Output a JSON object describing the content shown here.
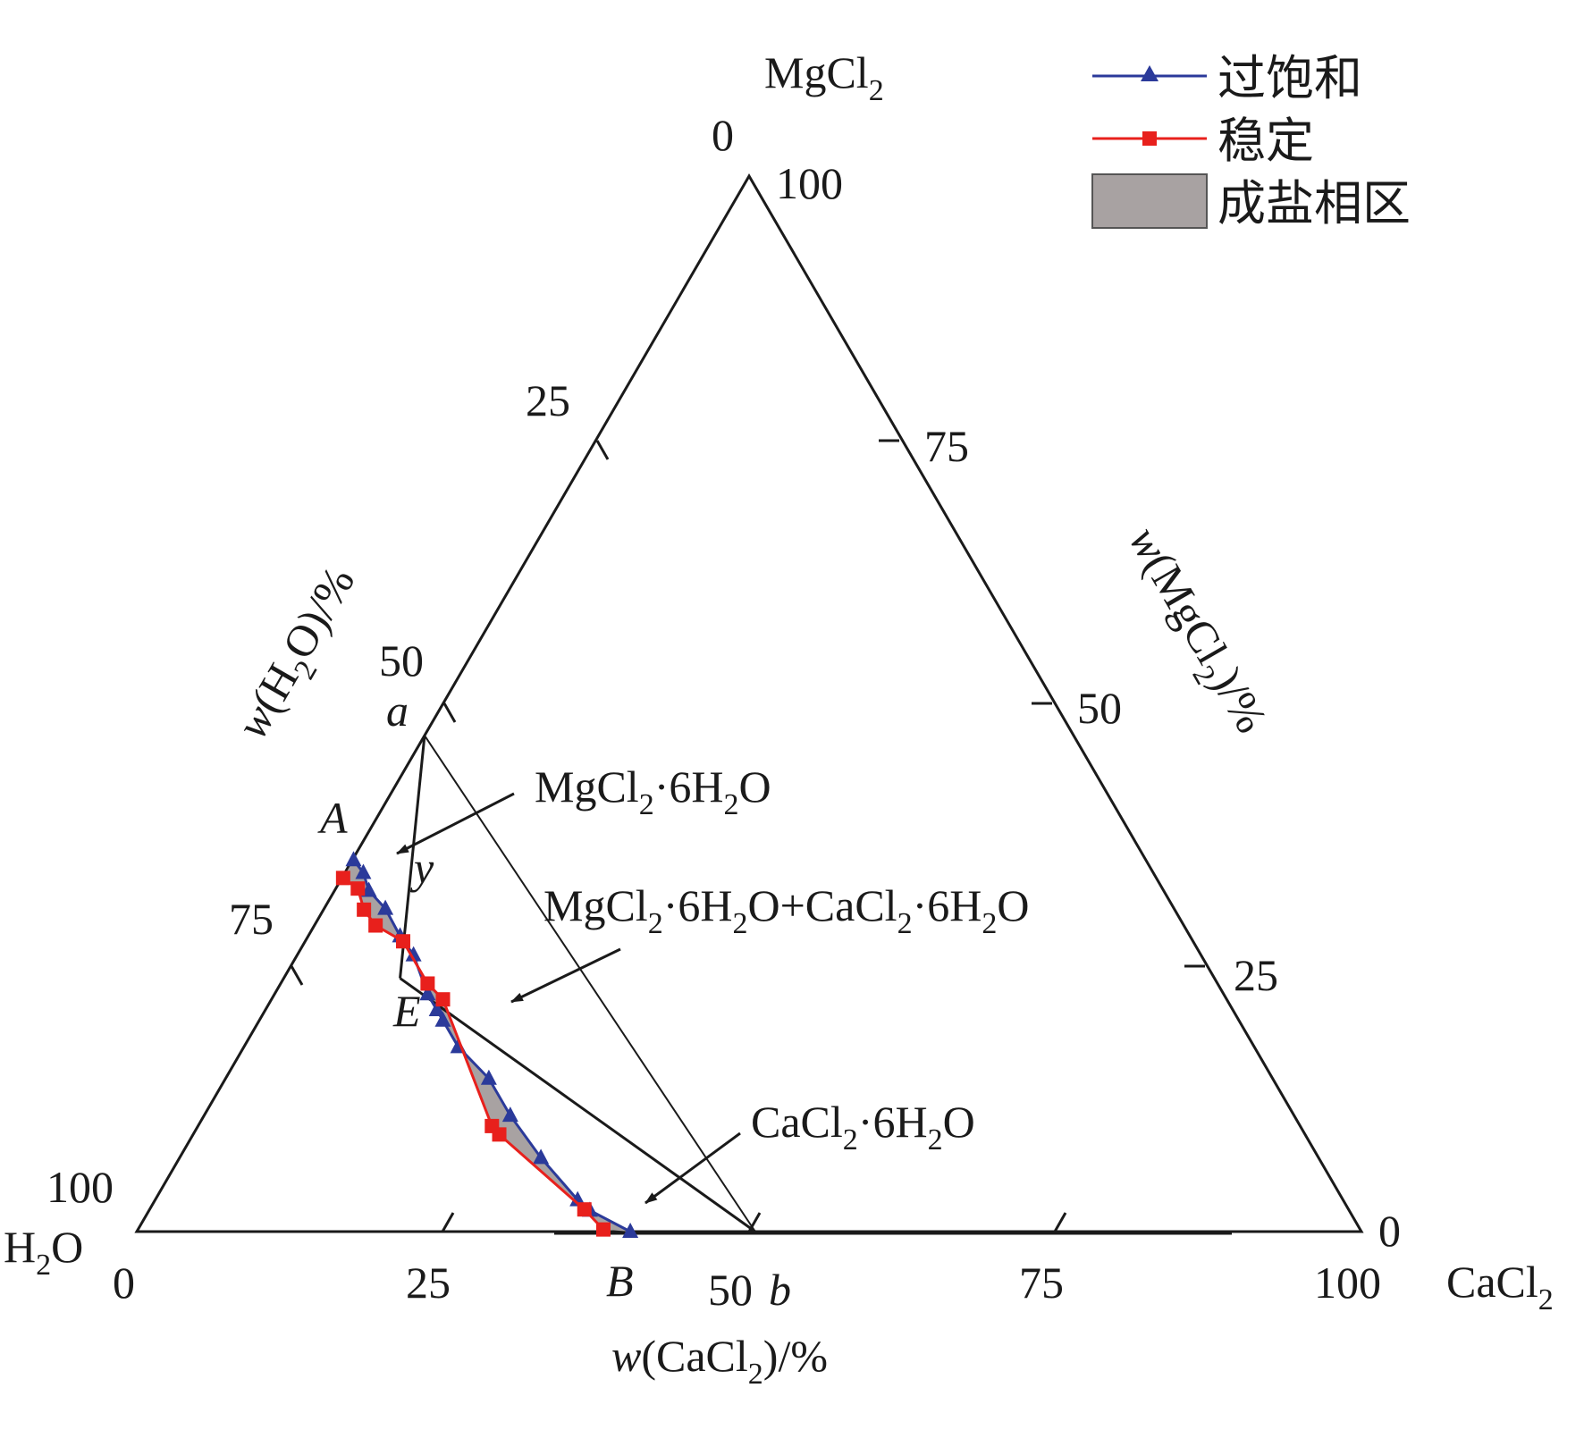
{
  "chart_data": {
    "type": "ternary",
    "vertices": {
      "top": {
        "label": "MgCl",
        "sub": "2"
      },
      "left": {
        "label": "H",
        "sub": "2",
        "tail": "O"
      },
      "right": {
        "label": "CaCl",
        "sub": "2"
      }
    },
    "axes": {
      "mgcl2": {
        "ticks": [
          "0",
          "25",
          "50",
          "75",
          "100"
        ],
        "title": {
          "pre": "w",
          "mid": "(MgCl",
          "sub": "2",
          "post": ")/%"
        }
      },
      "h2o": {
        "ticks": [
          "0",
          "25",
          "50",
          "75",
          "100"
        ],
        "title": {
          "pre": "w",
          "mid": "(H",
          "sub": "2",
          "post": "O)/%"
        }
      },
      "cacl2": {
        "ticks": [
          "0",
          "25",
          "50",
          "75",
          "100"
        ],
        "title": {
          "pre": "w",
          "mid": "(CaCl",
          "sub": "2",
          "post": ")/%"
        }
      }
    },
    "legend": {
      "placement": "top-right",
      "items": [
        {
          "label": "过饱和",
          "color": "#2b3a9a",
          "marker": "triangle"
        },
        {
          "label": "稳定",
          "color": "#e8201c",
          "marker": "square"
        },
        {
          "label": "成盐相区",
          "color": "#a8a2a2",
          "marker": "area"
        }
      ]
    },
    "series": [
      {
        "name": "过饱和",
        "color": "#2b3a9a",
        "marker": "triangle",
        "points": [
          {
            "cacl2": 0.1,
            "mgcl2": 35.2
          },
          {
            "cacl2": 1.5,
            "mgcl2": 34.0
          },
          {
            "cacl2": 2.8,
            "mgcl2": 32.3
          },
          {
            "cacl2": 5.0,
            "mgcl2": 30.6
          },
          {
            "cacl2": 7.5,
            "mgcl2": 28.0
          },
          {
            "cacl2": 9.5,
            "mgcl2": 26.2
          },
          {
            "cacl2": 12.5,
            "mgcl2": 22.5
          },
          {
            "cacl2": 14.0,
            "mgcl2": 21.0
          },
          {
            "cacl2": 15.0,
            "mgcl2": 20.0
          },
          {
            "cacl2": 17.5,
            "mgcl2": 17.5
          },
          {
            "cacl2": 21.5,
            "mgcl2": 14.5
          },
          {
            "cacl2": 25.0,
            "mgcl2": 11.0
          },
          {
            "cacl2": 29.5,
            "mgcl2": 7.0
          },
          {
            "cacl2": 34.5,
            "mgcl2": 3.0
          },
          {
            "cacl2": 36.0,
            "mgcl2": 2.0
          },
          {
            "cacl2": 40.3,
            "mgcl2": 0.0
          }
        ]
      },
      {
        "name": "稳定",
        "color": "#e8201c",
        "marker": "square",
        "points": [
          {
            "cacl2": 0.1,
            "mgcl2": 33.5
          },
          {
            "cacl2": 1.8,
            "mgcl2": 32.5
          },
          {
            "cacl2": 3.3,
            "mgcl2": 30.5
          },
          {
            "cacl2": 5.0,
            "mgcl2": 29.0
          },
          {
            "cacl2": 8.0,
            "mgcl2": 27.5
          },
          {
            "cacl2": 12.0,
            "mgcl2": 23.5
          },
          {
            "cacl2": 14.0,
            "mgcl2": 22.0
          },
          {
            "cacl2": 24.0,
            "mgcl2": 10.0
          },
          {
            "cacl2": 25.0,
            "mgcl2": 9.2
          },
          {
            "cacl2": 35.5,
            "mgcl2": 2.1
          },
          {
            "cacl2": 38.0,
            "mgcl2": 0.2
          }
        ]
      }
    ],
    "lines": [
      {
        "from": {
          "cacl2": 0,
          "mgcl2": 47
        },
        "to": {
          "cacl2": 50.5,
          "mgcl2": 0
        }
      },
      {
        "from": {
          "cacl2": 0,
          "mgcl2": 47
        },
        "to": {
          "cacl2": 9.5,
          "mgcl2": 24.0
        }
      },
      {
        "from": {
          "cacl2": 9.5,
          "mgcl2": 24.0
        },
        "to": {
          "cacl2": 50.5,
          "mgcl2": 0
        }
      }
    ],
    "points": [
      {
        "label": "a",
        "cacl2": 0,
        "mgcl2": 47
      },
      {
        "label": "A",
        "cacl2": 0,
        "mgcl2": 35.2
      },
      {
        "label": "y",
        "cacl2": 4,
        "mgcl2": 31
      },
      {
        "label": "E",
        "cacl2": 9.5,
        "mgcl2": 24.0
      },
      {
        "label": "B",
        "cacl2": 39,
        "mgcl2": 0
      },
      {
        "label": "b",
        "cacl2": 50.5,
        "mgcl2": 0
      }
    ],
    "annotations": [
      {
        "id": "ann-mg",
        "parts": [
          [
            "MgCl",
            ""
          ],
          [
            "2",
            "sub"
          ],
          [
            "·6H",
            ""
          ],
          [
            "2",
            "sub"
          ],
          [
            "O",
            ""
          ]
        ]
      },
      {
        "id": "ann-mgca",
        "parts": [
          [
            "MgCl",
            ""
          ],
          [
            "2",
            "sub"
          ],
          [
            "·6H",
            ""
          ],
          [
            "2",
            "sub"
          ],
          [
            "O+CaCl",
            ""
          ],
          [
            "2",
            "sub"
          ],
          [
            "·6H",
            ""
          ],
          [
            "2",
            "sub"
          ],
          [
            "O",
            ""
          ]
        ]
      },
      {
        "id": "ann-ca",
        "parts": [
          [
            "CaCl",
            ""
          ],
          [
            "2",
            "sub"
          ],
          [
            "·6H",
            ""
          ],
          [
            "2",
            "sub"
          ],
          [
            "O",
            ""
          ]
        ]
      }
    ]
  }
}
